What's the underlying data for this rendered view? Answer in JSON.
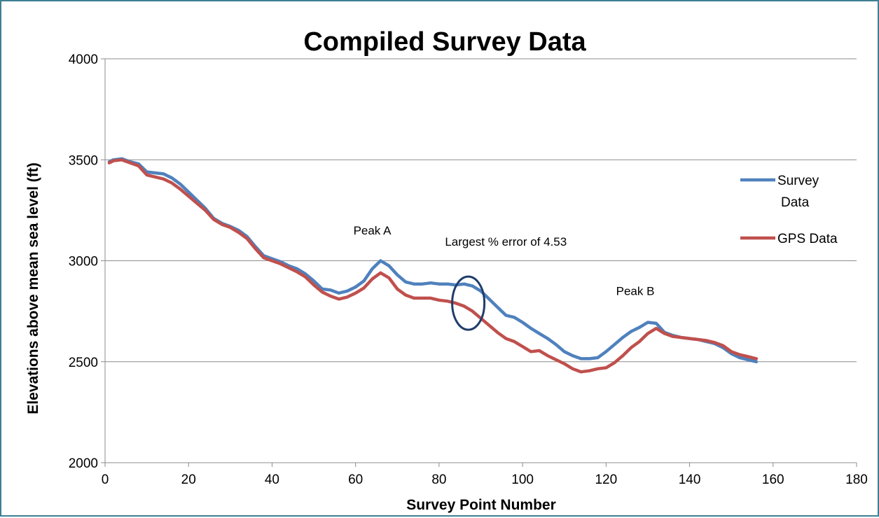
{
  "chart_data": {
    "type": "line",
    "title": "Compiled Survey Data",
    "xlabel": "Survey Point Number",
    "ylabel": "Elevations above mean sea level (ft)",
    "xlim": [
      0,
      180
    ],
    "ylim": [
      2000,
      4000
    ],
    "xticks": [
      0,
      20,
      40,
      60,
      80,
      100,
      120,
      140,
      160,
      180
    ],
    "yticks": [
      2000,
      2500,
      3000,
      3500,
      4000
    ],
    "grid": "horizontal",
    "legend_position": "right",
    "series": [
      {
        "name": "Survey Data",
        "color": "#4f81bd",
        "points": [
          [
            1,
            3490
          ],
          [
            2,
            3500
          ],
          [
            4,
            3505
          ],
          [
            6,
            3490
          ],
          [
            8,
            3480
          ],
          [
            10,
            3440
          ],
          [
            12,
            3435
          ],
          [
            14,
            3430
          ],
          [
            16,
            3410
          ],
          [
            18,
            3380
          ],
          [
            20,
            3340
          ],
          [
            22,
            3300
          ],
          [
            24,
            3260
          ],
          [
            26,
            3210
          ],
          [
            28,
            3185
          ],
          [
            30,
            3170
          ],
          [
            32,
            3150
          ],
          [
            34,
            3120
          ],
          [
            36,
            3070
          ],
          [
            38,
            3025
          ],
          [
            40,
            3010
          ],
          [
            42,
            2995
          ],
          [
            44,
            2975
          ],
          [
            46,
            2960
          ],
          [
            48,
            2935
          ],
          [
            50,
            2900
          ],
          [
            52,
            2860
          ],
          [
            54,
            2855
          ],
          [
            56,
            2840
          ],
          [
            58,
            2850
          ],
          [
            60,
            2870
          ],
          [
            62,
            2900
          ],
          [
            64,
            2960
          ],
          [
            66,
            3000
          ],
          [
            68,
            2975
          ],
          [
            70,
            2930
          ],
          [
            72,
            2895
          ],
          [
            74,
            2885
          ],
          [
            76,
            2885
          ],
          [
            78,
            2890
          ],
          [
            80,
            2885
          ],
          [
            82,
            2885
          ],
          [
            84,
            2880
          ],
          [
            86,
            2885
          ],
          [
            88,
            2875
          ],
          [
            90,
            2850
          ],
          [
            92,
            2810
          ],
          [
            94,
            2770
          ],
          [
            96,
            2730
          ],
          [
            98,
            2720
          ],
          [
            100,
            2695
          ],
          [
            102,
            2665
          ],
          [
            104,
            2640
          ],
          [
            106,
            2615
          ],
          [
            108,
            2585
          ],
          [
            110,
            2550
          ],
          [
            112,
            2530
          ],
          [
            114,
            2515
          ],
          [
            116,
            2515
          ],
          [
            118,
            2520
          ],
          [
            120,
            2550
          ],
          [
            122,
            2585
          ],
          [
            124,
            2620
          ],
          [
            126,
            2650
          ],
          [
            128,
            2670
          ],
          [
            130,
            2695
          ],
          [
            132,
            2690
          ],
          [
            134,
            2645
          ],
          [
            136,
            2630
          ],
          [
            138,
            2620
          ],
          [
            140,
            2615
          ],
          [
            142,
            2610
          ],
          [
            144,
            2600
          ],
          [
            146,
            2590
          ],
          [
            148,
            2570
          ],
          [
            150,
            2540
          ],
          [
            152,
            2520
          ],
          [
            154,
            2510
          ],
          [
            156,
            2500
          ]
        ]
      },
      {
        "name": "GPS Data",
        "color": "#c0504d",
        "points": [
          [
            1,
            3485
          ],
          [
            2,
            3495
          ],
          [
            4,
            3500
          ],
          [
            6,
            3485
          ],
          [
            8,
            3470
          ],
          [
            10,
            3425
          ],
          [
            12,
            3415
          ],
          [
            14,
            3405
          ],
          [
            16,
            3385
          ],
          [
            18,
            3355
          ],
          [
            20,
            3320
          ],
          [
            22,
            3285
          ],
          [
            24,
            3250
          ],
          [
            26,
            3205
          ],
          [
            28,
            3180
          ],
          [
            30,
            3165
          ],
          [
            32,
            3140
          ],
          [
            34,
            3110
          ],
          [
            36,
            3060
          ],
          [
            38,
            3015
          ],
          [
            40,
            3000
          ],
          [
            42,
            2985
          ],
          [
            44,
            2965
          ],
          [
            46,
            2945
          ],
          [
            48,
            2920
          ],
          [
            50,
            2880
          ],
          [
            52,
            2845
          ],
          [
            54,
            2825
          ],
          [
            56,
            2810
          ],
          [
            58,
            2820
          ],
          [
            60,
            2840
          ],
          [
            62,
            2865
          ],
          [
            64,
            2910
          ],
          [
            66,
            2940
          ],
          [
            68,
            2915
          ],
          [
            70,
            2860
          ],
          [
            72,
            2830
          ],
          [
            74,
            2815
          ],
          [
            76,
            2815
          ],
          [
            78,
            2815
          ],
          [
            80,
            2805
          ],
          [
            82,
            2800
          ],
          [
            84,
            2790
          ],
          [
            86,
            2775
          ],
          [
            88,
            2750
          ],
          [
            90,
            2715
          ],
          [
            92,
            2680
          ],
          [
            94,
            2645
          ],
          [
            96,
            2615
          ],
          [
            98,
            2600
          ],
          [
            100,
            2575
          ],
          [
            102,
            2550
          ],
          [
            104,
            2555
          ],
          [
            106,
            2530
          ],
          [
            108,
            2510
          ],
          [
            110,
            2490
          ],
          [
            112,
            2465
          ],
          [
            114,
            2450
          ],
          [
            116,
            2455
          ],
          [
            118,
            2465
          ],
          [
            120,
            2470
          ],
          [
            122,
            2495
          ],
          [
            124,
            2530
          ],
          [
            126,
            2570
          ],
          [
            128,
            2600
          ],
          [
            130,
            2640
          ],
          [
            132,
            2665
          ],
          [
            134,
            2640
          ],
          [
            136,
            2625
          ],
          [
            138,
            2620
          ],
          [
            140,
            2615
          ],
          [
            142,
            2610
          ],
          [
            144,
            2605
          ],
          [
            146,
            2595
          ],
          [
            148,
            2580
          ],
          [
            150,
            2550
          ],
          [
            152,
            2535
          ],
          [
            154,
            2525
          ],
          [
            156,
            2515
          ]
        ]
      }
    ],
    "annotations": [
      {
        "text": "Peak A",
        "x": 64,
        "y": 3130
      },
      {
        "text": "Largest % error of 4.53",
        "x": 96,
        "y": 3075
      },
      {
        "text": "Peak B",
        "x": 127,
        "y": 2830
      }
    ],
    "highlight_ellipse": {
      "x": 87,
      "y": 2790,
      "color": "#1f3d6b"
    }
  }
}
